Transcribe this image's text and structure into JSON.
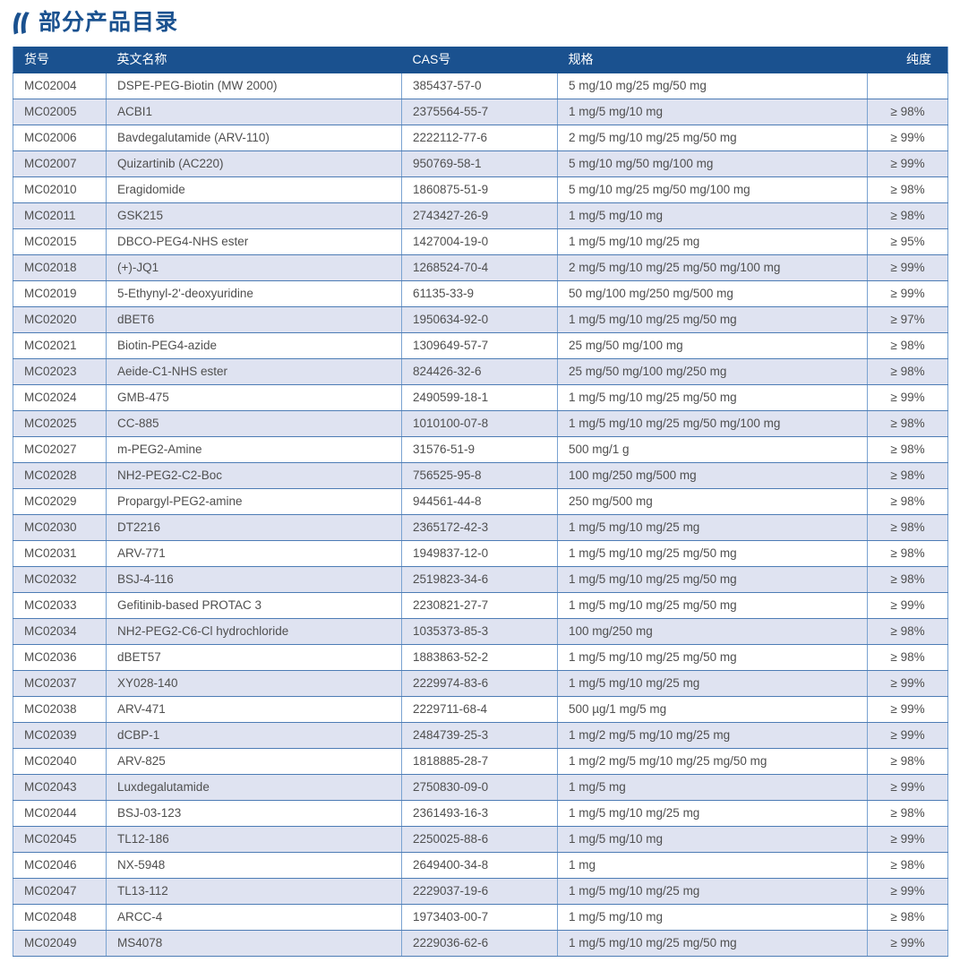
{
  "page": {
    "title": "部分产品目录",
    "accent_color": "#1a518f",
    "stripe_color": "#dfe3f1",
    "border_color": "#4d7cb5",
    "icon": "brand-flame-slashes-icon"
  },
  "table": {
    "columns": [
      "货号",
      "英文名称",
      "CAS号",
      "规格",
      "纯度"
    ],
    "rows": [
      {
        "code": "MC02004",
        "name": "DSPE-PEG-Biotin (MW 2000)",
        "cas": "385437-57-0",
        "spec": "5 mg/10 mg/25 mg/50 mg",
        "purity": ""
      },
      {
        "code": "MC02005",
        "name": "ACBI1",
        "cas": "2375564-55-7",
        "spec": "1 mg/5 mg/10 mg",
        "purity": "≥ 98%"
      },
      {
        "code": "MC02006",
        "name": "Bavdegalutamide (ARV-110)",
        "cas": "2222112-77-6",
        "spec": "2 mg/5 mg/10 mg/25 mg/50 mg",
        "purity": "≥ 99%"
      },
      {
        "code": "MC02007",
        "name": "Quizartinib (AC220)",
        "cas": "950769-58-1",
        "spec": "5 mg/10 mg/50 mg/100 mg",
        "purity": "≥ 99%"
      },
      {
        "code": "MC02010",
        "name": "Eragidomide",
        "cas": "1860875-51-9",
        "spec": "5 mg/10 mg/25 mg/50 mg/100 mg",
        "purity": "≥ 98%"
      },
      {
        "code": "MC02011",
        "name": "GSK215",
        "cas": "2743427-26-9",
        "spec": "1 mg/5 mg/10 mg",
        "purity": "≥ 98%"
      },
      {
        "code": "MC02015",
        "name": "DBCO-PEG4-NHS ester",
        "cas": "1427004-19-0",
        "spec": "1 mg/5 mg/10 mg/25 mg",
        "purity": "≥ 95%"
      },
      {
        "code": "MC02018",
        "name": "(+)-JQ1",
        "cas": "1268524-70-4",
        "spec": "2 mg/5 mg/10 mg/25 mg/50 mg/100 mg",
        "purity": "≥ 99%"
      },
      {
        "code": "MC02019",
        "name": "5-Ethynyl-2'-deoxyuridine",
        "cas": "61135-33-9",
        "spec": "50 mg/100 mg/250 mg/500 mg",
        "purity": "≥ 99%"
      },
      {
        "code": "MC02020",
        "name": "dBET6",
        "cas": "1950634-92-0",
        "spec": "1 mg/5 mg/10 mg/25 mg/50 mg",
        "purity": "≥ 97%"
      },
      {
        "code": "MC02021",
        "name": "Biotin-PEG4-azide",
        "cas": "1309649-57-7",
        "spec": "25 mg/50 mg/100 mg",
        "purity": "≥ 98%"
      },
      {
        "code": "MC02023",
        "name": "Aeide-C1-NHS ester",
        "cas": "824426-32-6",
        "spec": "25 mg/50 mg/100 mg/250 mg",
        "purity": "≥ 98%"
      },
      {
        "code": "MC02024",
        "name": "GMB-475",
        "cas": "2490599-18-1",
        "spec": "1 mg/5 mg/10 mg/25 mg/50 mg",
        "purity": "≥ 99%"
      },
      {
        "code": "MC02025",
        "name": "CC-885",
        "cas": "1010100-07-8",
        "spec": "1 mg/5 mg/10 mg/25 mg/50 mg/100 mg",
        "purity": "≥ 98%"
      },
      {
        "code": "MC02027",
        "name": "m-PEG2-Amine",
        "cas": "31576-51-9",
        "spec": "500 mg/1 g",
        "purity": "≥ 98%"
      },
      {
        "code": "MC02028",
        "name": "NH2-PEG2-C2-Boc",
        "cas": "756525-95-8",
        "spec": "100 mg/250 mg/500 mg",
        "purity": "≥ 98%"
      },
      {
        "code": "MC02029",
        "name": "Propargyl-PEG2-amine",
        "cas": "944561-44-8",
        "spec": "250 mg/500 mg",
        "purity": "≥ 98%"
      },
      {
        "code": "MC02030",
        "name": "DT2216",
        "cas": "2365172-42-3",
        "spec": "1 mg/5 mg/10 mg/25 mg",
        "purity": "≥ 98%"
      },
      {
        "code": "MC02031",
        "name": "ARV-771",
        "cas": "1949837-12-0",
        "spec": "1 mg/5 mg/10 mg/25 mg/50 mg",
        "purity": "≥ 98%"
      },
      {
        "code": "MC02032",
        "name": "BSJ-4-116",
        "cas": "2519823-34-6",
        "spec": "1 mg/5 mg/10 mg/25 mg/50 mg",
        "purity": "≥ 98%"
      },
      {
        "code": "MC02033",
        "name": "Gefitinib-based PROTAC 3",
        "cas": "2230821-27-7",
        "spec": "1 mg/5 mg/10 mg/25 mg/50 mg",
        "purity": "≥ 99%"
      },
      {
        "code": "MC02034",
        "name": "NH2-PEG2-C6-Cl hydrochloride",
        "cas": "1035373-85-3",
        "spec": "100 mg/250 mg",
        "purity": "≥ 98%"
      },
      {
        "code": "MC02036",
        "name": "dBET57",
        "cas": "1883863-52-2",
        "spec": "1 mg/5 mg/10 mg/25 mg/50 mg",
        "purity": "≥ 98%"
      },
      {
        "code": "MC02037",
        "name": "XY028-140",
        "cas": "2229974-83-6",
        "spec": "1 mg/5 mg/10 mg/25 mg",
        "purity": "≥ 99%"
      },
      {
        "code": "MC02038",
        "name": "ARV-471",
        "cas": "2229711-68-4",
        "spec": "500 µg/1 mg/5 mg",
        "purity": "≥ 99%"
      },
      {
        "code": "MC02039",
        "name": "dCBP-1",
        "cas": "2484739-25-3",
        "spec": "1 mg/2 mg/5 mg/10 mg/25 mg",
        "purity": "≥ 99%"
      },
      {
        "code": "MC02040",
        "name": "ARV-825",
        "cas": "1818885-28-7",
        "spec": "1 mg/2 mg/5 mg/10 mg/25 mg/50 mg",
        "purity": "≥ 98%"
      },
      {
        "code": "MC02043",
        "name": "Luxdegalutamide",
        "cas": "2750830-09-0",
        "spec": "1 mg/5 mg",
        "purity": "≥ 99%"
      },
      {
        "code": "MC02044",
        "name": "BSJ-03-123",
        "cas": "2361493-16-3",
        "spec": "1 mg/5 mg/10 mg/25 mg",
        "purity": "≥ 98%"
      },
      {
        "code": "MC02045",
        "name": "TL12-186",
        "cas": "2250025-88-6",
        "spec": "1 mg/5 mg/10 mg",
        "purity": "≥ 99%"
      },
      {
        "code": "MC02046",
        "name": "NX-5948",
        "cas": "2649400-34-8",
        "spec": "1 mg",
        "purity": "≥ 98%"
      },
      {
        "code": "MC02047",
        "name": "TL13-112",
        "cas": "2229037-19-6",
        "spec": "1 mg/5 mg/10 mg/25 mg",
        "purity": "≥ 99%"
      },
      {
        "code": "MC02048",
        "name": "ARCC-4",
        "cas": "1973403-00-7",
        "spec": "1 mg/5 mg/10 mg",
        "purity": "≥ 98%"
      },
      {
        "code": "MC02049",
        "name": "MS4078",
        "cas": "2229036-62-6",
        "spec": "1 mg/5 mg/10 mg/25 mg/50 mg",
        "purity": "≥ 99%"
      }
    ]
  }
}
